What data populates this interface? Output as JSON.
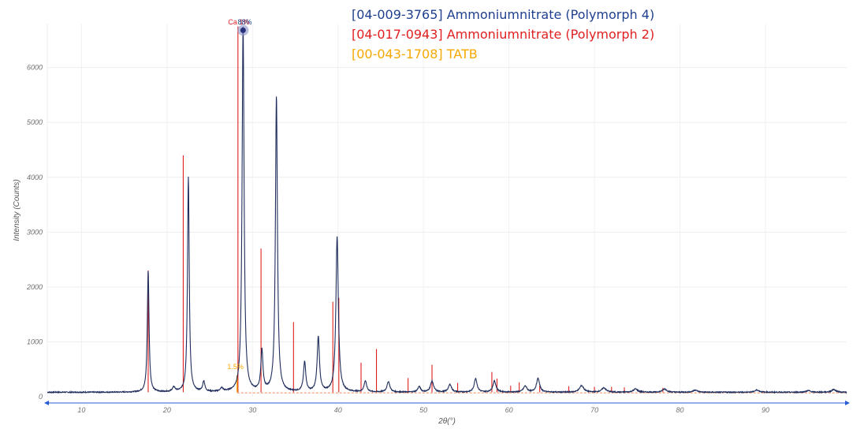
{
  "chart_data": {
    "type": "line",
    "xlabel": "2θ(°)",
    "ylabel": "Intensity (Counts)",
    "xlim": [
      6,
      99.5
    ],
    "ylim": [
      0,
      6800
    ],
    "x_ticks": [
      10,
      20,
      30,
      40,
      50,
      60,
      70,
      80,
      90
    ],
    "y_ticks": [
      0,
      1000,
      2000,
      3000,
      4000,
      5000,
      6000
    ],
    "grid": true,
    "legend_position": "top-center",
    "colors": {
      "measured": "#1f2d5c",
      "polymorph4": "#1f3f8f",
      "polymorph2": "#e02020",
      "tatb": "#f5a800",
      "axis": "#2a5bd7"
    },
    "legend": [
      {
        "label": "[04-009-3765] Ammoniumnitrate (Polymorph 4)",
        "color": "#1f3f8f"
      },
      {
        "label": "[04-017-0943] Ammoniumnitrate (Polymorph 2)",
        "color": "#e02020"
      },
      {
        "label": "[00-043-1708] TATB",
        "color": "#f5a800"
      }
    ],
    "background_counts": 80,
    "measured_peaks": [
      {
        "x": 17.8,
        "y": 2220,
        "w": 0.12
      },
      {
        "x": 20.8,
        "y": 80,
        "w": 0.2
      },
      {
        "x": 22.5,
        "y": 3930,
        "w": 0.12
      },
      {
        "x": 24.3,
        "y": 190,
        "w": 0.15
      },
      {
        "x": 26.4,
        "y": 60,
        "w": 0.2
      },
      {
        "x": 28.9,
        "y": 6680,
        "w": 0.14
      },
      {
        "x": 31.1,
        "y": 740,
        "w": 0.15
      },
      {
        "x": 32.8,
        "y": 5400,
        "w": 0.14
      },
      {
        "x": 36.1,
        "y": 540,
        "w": 0.16
      },
      {
        "x": 37.7,
        "y": 1000,
        "w": 0.16
      },
      {
        "x": 39.9,
        "y": 2830,
        "w": 0.17
      },
      {
        "x": 43.2,
        "y": 200,
        "w": 0.18
      },
      {
        "x": 45.9,
        "y": 190,
        "w": 0.2
      },
      {
        "x": 49.5,
        "y": 100,
        "w": 0.2
      },
      {
        "x": 51.0,
        "y": 200,
        "w": 0.22
      },
      {
        "x": 53.1,
        "y": 140,
        "w": 0.22
      },
      {
        "x": 56.1,
        "y": 250,
        "w": 0.2
      },
      {
        "x": 58.3,
        "y": 200,
        "w": 0.22
      },
      {
        "x": 61.9,
        "y": 110,
        "w": 0.25
      },
      {
        "x": 63.4,
        "y": 250,
        "w": 0.22
      },
      {
        "x": 68.5,
        "y": 120,
        "w": 0.3
      },
      {
        "x": 71.1,
        "y": 80,
        "w": 0.3
      },
      {
        "x": 74.8,
        "y": 60,
        "w": 0.3
      },
      {
        "x": 78.2,
        "y": 60,
        "w": 0.3
      },
      {
        "x": 81.8,
        "y": 40,
        "w": 0.3
      },
      {
        "x": 89.0,
        "y": 40,
        "w": 0.3
      },
      {
        "x": 95.0,
        "y": 30,
        "w": 0.3
      },
      {
        "x": 98.0,
        "y": 50,
        "w": 0.3
      }
    ],
    "reference_polymorph2": [
      {
        "x": 17.8,
        "y": 2300
      },
      {
        "x": 21.9,
        "y": 4400
      },
      {
        "x": 28.3,
        "y": 6750
      },
      {
        "x": 31.0,
        "y": 2700
      },
      {
        "x": 34.8,
        "y": 1360
      },
      {
        "x": 39.4,
        "y": 1730
      },
      {
        "x": 40.1,
        "y": 1800
      },
      {
        "x": 42.7,
        "y": 620
      },
      {
        "x": 44.5,
        "y": 870
      },
      {
        "x": 48.2,
        "y": 340
      },
      {
        "x": 51.0,
        "y": 580
      },
      {
        "x": 54.0,
        "y": 250
      },
      {
        "x": 58.0,
        "y": 450
      },
      {
        "x": 58.6,
        "y": 330
      },
      {
        "x": 60.2,
        "y": 200
      },
      {
        "x": 61.2,
        "y": 260
      },
      {
        "x": 63.6,
        "y": 200
      },
      {
        "x": 67.0,
        "y": 190
      },
      {
        "x": 70.0,
        "y": 180
      },
      {
        "x": 72.0,
        "y": 180
      },
      {
        "x": 73.5,
        "y": 170
      },
      {
        "x": 78.0,
        "y": 160
      }
    ],
    "reference_tatb": [
      {
        "x": 28.2,
        "y": 390
      }
    ],
    "annotations": [
      {
        "text": "Ca 1%",
        "x": 28.4,
        "y": 6700,
        "color": "#e02020"
      },
      {
        "text": "88%",
        "x": 29.1,
        "y": 6700,
        "color": "#1f3f8f"
      },
      {
        "text": "1.5%",
        "x": 28.0,
        "y": 420,
        "color": "#f5a800"
      }
    ],
    "marker": {
      "x": 28.9,
      "y": 6680
    }
  }
}
